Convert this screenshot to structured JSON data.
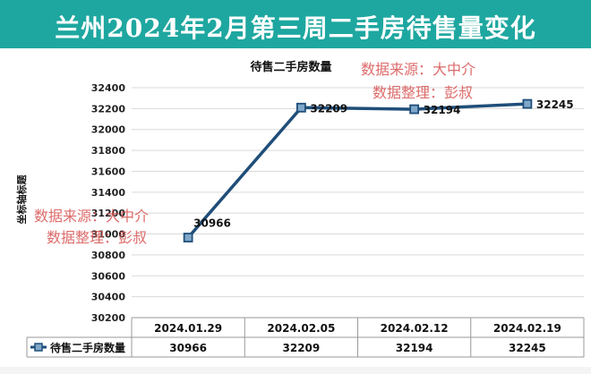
{
  "header": {
    "title": "兰州2024年2月第三周二手房待售量变化"
  },
  "watermark": {
    "line1": "数据来源：大中介",
    "line2": "数据整理：彭叔"
  },
  "colors": {
    "header_bg": "#1ea7a0",
    "series": "#1f4e79",
    "grid": "#d9d9d9"
  },
  "chart_data": {
    "type": "line",
    "title": "待售二手房数量",
    "xlabel": "",
    "ylabel": "坐标轴标题",
    "categories": [
      "2024.01.29",
      "2024.02.05",
      "2024.02.12",
      "2024.02.19"
    ],
    "series": [
      {
        "name": "待售二手房数量",
        "values": [
          30966,
          32209,
          32194,
          32245
        ]
      }
    ],
    "ylim": [
      30200,
      32400
    ],
    "yticks": [
      30200,
      30400,
      30600,
      30800,
      31000,
      31200,
      31400,
      31600,
      31800,
      32000,
      32200,
      32400
    ],
    "data_labels": [
      "30966",
      "32209",
      "32194",
      "32245"
    ],
    "grid": true,
    "legend": "data-table"
  }
}
